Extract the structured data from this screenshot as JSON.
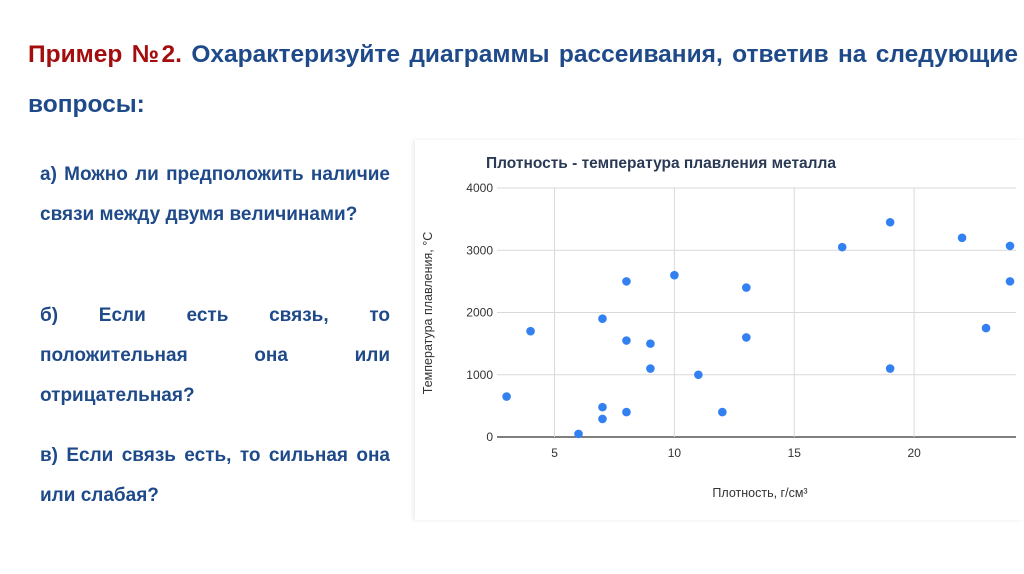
{
  "slide": {
    "title_prefix": "Пример №2.",
    "title_rest": " Охарактеризуйте диаграммы рассеивания, ответив на следующие вопросы:",
    "questions": [
      "а) Можно ли предположить наличие связи между двумя величинами?",
      "б) Если есть связь, то положительная она или отрицательная?",
      "в) Если связь есть, то сильная она или слабая?"
    ],
    "colors": {
      "title": "#1f4a8a",
      "prefix": "#a30d0d",
      "points": "#3381f0"
    }
  },
  "chart_data": {
    "type": "scatter",
    "title": "Плотность - температура плавления металла",
    "xlabel": "Плотность, г/см³",
    "ylabel": "Температура плавления, °С",
    "xlim": [
      2.6,
      24.25
    ],
    "ylim": [
      0,
      4000
    ],
    "xticks": [
      5,
      10,
      15,
      20
    ],
    "yticks": [
      0,
      1000,
      2000,
      3000,
      4000
    ],
    "grid": true,
    "points": [
      [
        3,
        650
      ],
      [
        4,
        1700
      ],
      [
        6,
        50
      ],
      [
        7,
        1900
      ],
      [
        7,
        480
      ],
      [
        7,
        290
      ],
      [
        8,
        2500
      ],
      [
        8,
        1550
      ],
      [
        8,
        400
      ],
      [
        9,
        1500
      ],
      [
        9,
        1100
      ],
      [
        10,
        2600
      ],
      [
        11,
        1000
      ],
      [
        12,
        400
      ],
      [
        13,
        2400
      ],
      [
        13,
        1600
      ],
      [
        17,
        3050
      ],
      [
        19,
        3450
      ],
      [
        19,
        1100
      ],
      [
        22,
        3200
      ],
      [
        23,
        1750
      ],
      [
        24,
        3070
      ],
      [
        24,
        2500
      ]
    ]
  }
}
